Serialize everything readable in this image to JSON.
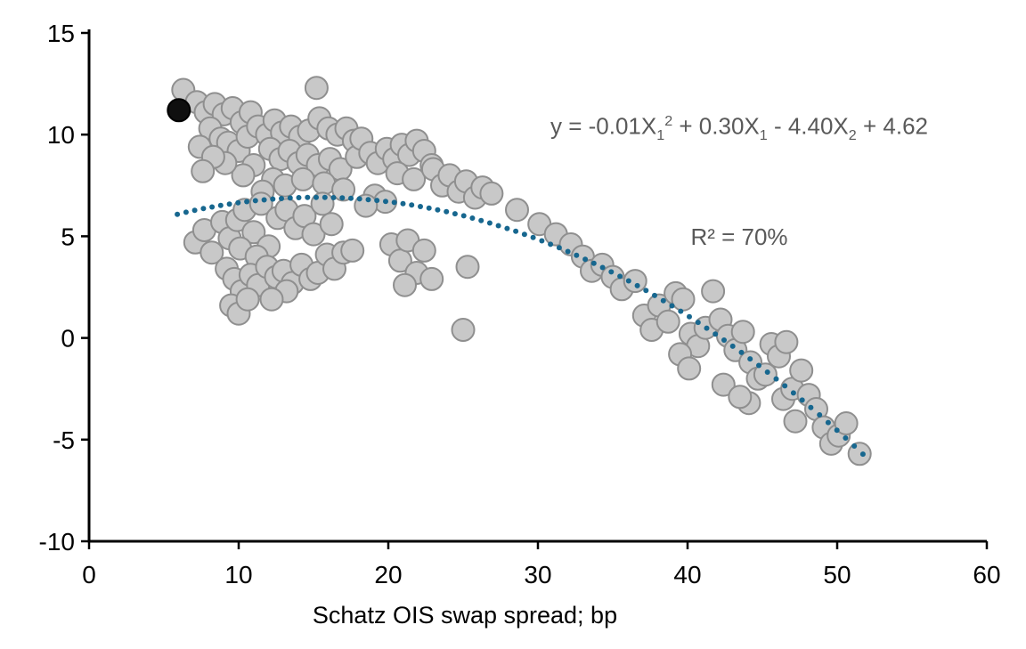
{
  "chart_data": {
    "type": "scatter",
    "title": "",
    "xlabel": "Schatz OIS swap spread; bp",
    "ylabel": "",
    "xlim": [
      0,
      60
    ],
    "ylim": [
      -10,
      15
    ],
    "x_ticks": [
      0,
      10,
      20,
      30,
      40,
      50,
      60
    ],
    "y_ticks": [
      -10,
      -5,
      0,
      5,
      10,
      15
    ],
    "grid": false,
    "legend": "none",
    "axis_color": "#000000",
    "equation": {
      "color": "#595959",
      "line1_parts": [
        {
          "t": "y = -0.01X"
        },
        {
          "t": "1",
          "style": "sub"
        },
        {
          "t": "2",
          "style": "sup"
        },
        {
          "t": " + 0.30X"
        },
        {
          "t": "1",
          "style": "sub"
        },
        {
          "t": " - 4.40X"
        },
        {
          "t": "2",
          "style": "sub"
        },
        {
          "t": " + 4.62"
        }
      ],
      "line2": "R² = 70%"
    },
    "trendline": {
      "type": "quadratic-fit",
      "style": "dotted",
      "color": "#17678f",
      "a": -0.0095,
      "b": 0.29,
      "c": 4.7,
      "x_start": 5.9,
      "x_end": 52.0
    },
    "series": [
      {
        "name": "observations",
        "fill": "#c8c8c8",
        "stroke": "#8f8f8f",
        "points": [
          [
            6.3,
            12.2
          ],
          [
            7.2,
            11.6
          ],
          [
            7.8,
            11.1
          ],
          [
            8.4,
            11.5
          ],
          [
            9.0,
            11.0
          ],
          [
            9.6,
            11.3
          ],
          [
            10.2,
            10.6
          ],
          [
            10.8,
            11.1
          ],
          [
            8.1,
            10.3
          ],
          [
            8.8,
            9.8
          ],
          [
            7.4,
            9.4
          ],
          [
            9.3,
            9.6
          ],
          [
            10.0,
            9.2
          ],
          [
            10.6,
            9.9
          ],
          [
            11.3,
            10.4
          ],
          [
            11.9,
            10.0
          ],
          [
            12.4,
            10.7
          ],
          [
            12.9,
            10.1
          ],
          [
            13.5,
            10.4
          ],
          [
            14.1,
            9.9
          ],
          [
            14.7,
            10.2
          ],
          [
            15.2,
            12.3
          ],
          [
            15.4,
            10.8
          ],
          [
            16.0,
            10.3
          ],
          [
            16.6,
            10.0
          ],
          [
            17.2,
            10.3
          ],
          [
            17.7,
            9.7
          ],
          [
            12.1,
            9.3
          ],
          [
            12.8,
            8.8
          ],
          [
            13.4,
            9.2
          ],
          [
            14.0,
            8.6
          ],
          [
            14.6,
            9.0
          ],
          [
            15.3,
            8.5
          ],
          [
            16.1,
            8.8
          ],
          [
            16.8,
            8.3
          ],
          [
            11.0,
            8.5
          ],
          [
            10.3,
            8.0
          ],
          [
            9.1,
            8.6
          ],
          [
            8.3,
            8.9
          ],
          [
            7.6,
            8.2
          ],
          [
            12.3,
            7.8
          ],
          [
            13.1,
            7.5
          ],
          [
            14.3,
            7.8
          ],
          [
            15.7,
            7.6
          ],
          [
            17.0,
            7.3
          ],
          [
            11.6,
            7.2
          ],
          [
            17.9,
            8.9
          ],
          [
            7.1,
            4.7
          ],
          [
            7.7,
            5.3
          ],
          [
            8.2,
            4.2
          ],
          [
            8.9,
            5.7
          ],
          [
            9.4,
            4.9
          ],
          [
            9.9,
            5.8
          ],
          [
            10.4,
            6.3
          ],
          [
            11.0,
            5.2
          ],
          [
            11.5,
            6.6
          ],
          [
            12.0,
            4.5
          ],
          [
            12.6,
            5.9
          ],
          [
            13.2,
            6.3
          ],
          [
            13.8,
            5.4
          ],
          [
            14.4,
            6.0
          ],
          [
            15.0,
            5.1
          ],
          [
            15.6,
            6.6
          ],
          [
            16.2,
            5.6
          ],
          [
            10.1,
            4.4
          ],
          [
            11.2,
            4.0
          ],
          [
            9.2,
            3.4
          ],
          [
            9.7,
            2.9
          ],
          [
            10.2,
            2.3
          ],
          [
            10.8,
            3.1
          ],
          [
            11.3,
            2.6
          ],
          [
            11.9,
            3.5
          ],
          [
            12.5,
            3.0
          ],
          [
            13.0,
            3.3
          ],
          [
            13.6,
            2.7
          ],
          [
            14.2,
            3.6
          ],
          [
            9.5,
            1.6
          ],
          [
            10.0,
            1.2
          ],
          [
            10.6,
            1.9
          ],
          [
            13.2,
            2.3
          ],
          [
            14.8,
            2.9
          ],
          [
            15.3,
            3.2
          ],
          [
            15.9,
            4.1
          ],
          [
            16.4,
            3.4
          ],
          [
            17.0,
            4.2
          ],
          [
            17.6,
            4.3
          ],
          [
            12.2,
            1.9
          ],
          [
            18.2,
            9.8
          ],
          [
            18.8,
            9.1
          ],
          [
            19.3,
            8.6
          ],
          [
            19.9,
            9.3
          ],
          [
            20.4,
            8.8
          ],
          [
            20.9,
            9.5
          ],
          [
            21.4,
            9.0
          ],
          [
            21.9,
            9.7
          ],
          [
            22.4,
            9.2
          ],
          [
            22.9,
            8.5
          ],
          [
            20.6,
            8.1
          ],
          [
            21.7,
            7.8
          ],
          [
            23.0,
            8.3
          ],
          [
            23.6,
            7.5
          ],
          [
            24.1,
            8.0
          ],
          [
            24.7,
            7.2
          ],
          [
            25.2,
            7.7
          ],
          [
            25.8,
            6.9
          ],
          [
            26.3,
            7.4
          ],
          [
            26.9,
            7.1
          ],
          [
            19.1,
            7.0
          ],
          [
            19.8,
            6.7
          ],
          [
            18.5,
            6.5
          ],
          [
            20.2,
            4.6
          ],
          [
            20.8,
            3.8
          ],
          [
            21.3,
            4.8
          ],
          [
            21.9,
            3.2
          ],
          [
            22.4,
            4.3
          ],
          [
            22.9,
            2.9
          ],
          [
            21.1,
            2.6
          ],
          [
            25.3,
            3.5
          ],
          [
            25.0,
            0.4
          ],
          [
            28.6,
            6.3
          ],
          [
            30.1,
            5.6
          ],
          [
            31.2,
            5.1
          ],
          [
            32.2,
            4.6
          ],
          [
            33.0,
            4.0
          ],
          [
            33.6,
            3.3
          ],
          [
            34.3,
            3.6
          ],
          [
            35.0,
            3.0
          ],
          [
            35.6,
            2.4
          ],
          [
            36.5,
            2.8
          ],
          [
            37.1,
            1.1
          ],
          [
            37.6,
            0.4
          ],
          [
            38.1,
            1.6
          ],
          [
            38.7,
            0.8
          ],
          [
            39.2,
            2.2
          ],
          [
            39.7,
            1.9
          ],
          [
            40.2,
            0.2
          ],
          [
            40.7,
            -0.4
          ],
          [
            39.5,
            -0.8
          ],
          [
            40.1,
            -1.5
          ],
          [
            41.2,
            0.5
          ],
          [
            41.7,
            2.3
          ],
          [
            42.2,
            0.9
          ],
          [
            42.7,
            0.1
          ],
          [
            43.2,
            -0.6
          ],
          [
            43.7,
            0.3
          ],
          [
            44.2,
            -1.2
          ],
          [
            44.7,
            -2.0
          ],
          [
            44.1,
            -3.2
          ],
          [
            45.2,
            -1.8
          ],
          [
            45.6,
            -0.3
          ],
          [
            46.1,
            -0.9
          ],
          [
            46.6,
            -0.2
          ],
          [
            46.4,
            -3.0
          ],
          [
            47.0,
            -2.5
          ],
          [
            47.2,
            -4.1
          ],
          [
            47.6,
            -1.6
          ],
          [
            48.1,
            -2.8
          ],
          [
            48.6,
            -3.5
          ],
          [
            49.1,
            -4.4
          ],
          [
            49.6,
            -5.2
          ],
          [
            50.1,
            -4.8
          ],
          [
            50.6,
            -4.2
          ],
          [
            51.5,
            -5.7
          ],
          [
            42.4,
            -2.3
          ],
          [
            43.5,
            -2.9
          ]
        ]
      },
      {
        "name": "latest-highlight",
        "fill": "#0f0f0f",
        "stroke": "#000000",
        "points": [
          [
            6.0,
            11.2
          ]
        ]
      }
    ]
  }
}
